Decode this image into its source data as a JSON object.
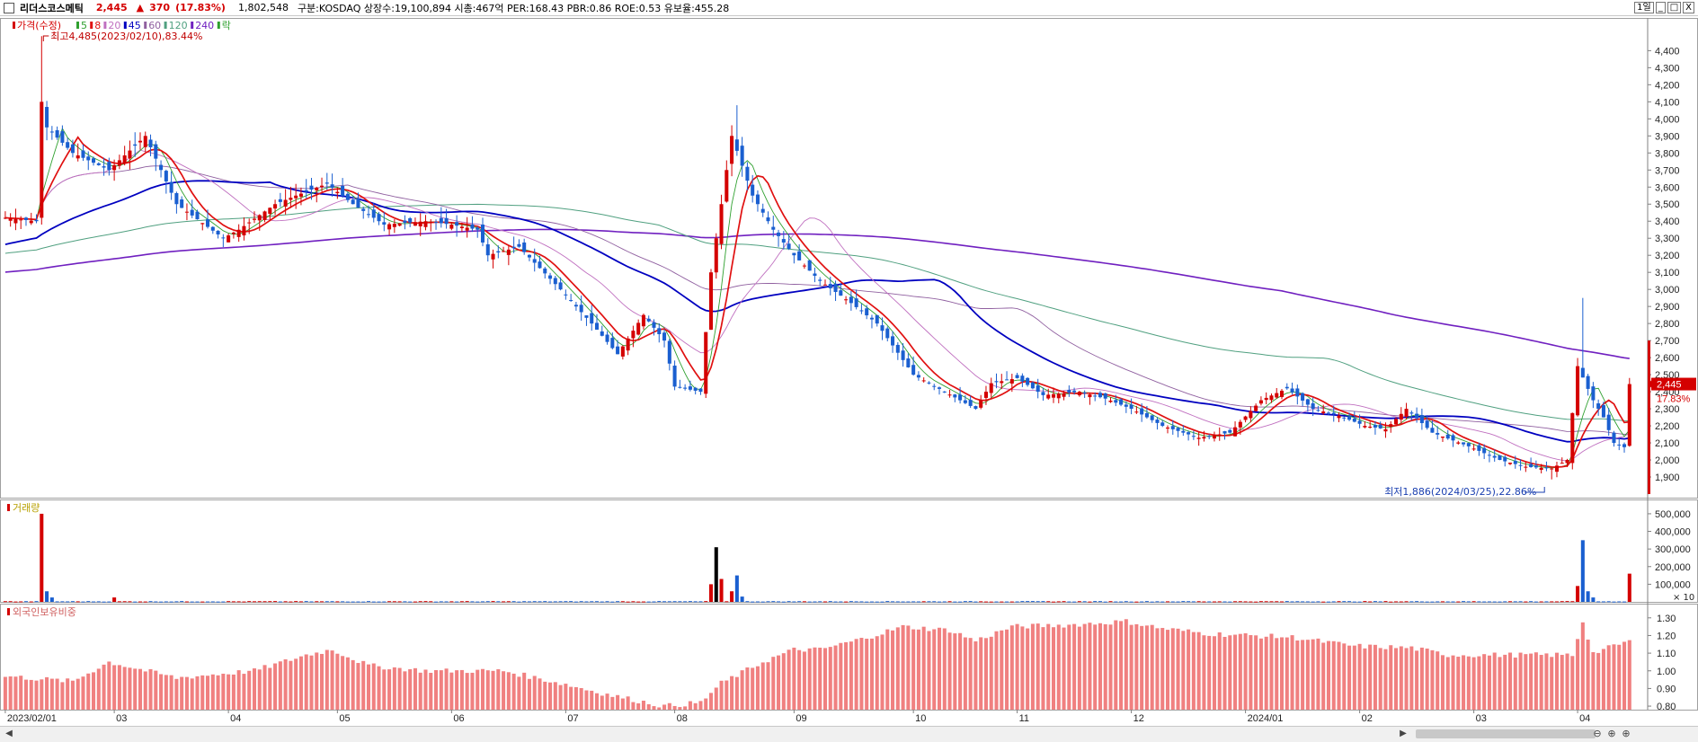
{
  "header": {
    "stock_name": "리더스코스메틱",
    "price": "2,445",
    "change_arrow": "▲",
    "change": "370",
    "change_pct": "(17.83%)",
    "volume": "1,802,548",
    "info": "구분:KOSDAQ 상장수:19,100,894 시총:467억 PER:168.43 PBR:0.86 ROE:0.53 유보율:455.28",
    "period_button": "1일",
    "win_buttons": [
      "_",
      "□",
      "X"
    ]
  },
  "colors": {
    "up": "#d40000",
    "down": "#1a5fd0",
    "ma5": "#2fa02f",
    "ma8": "#e01010",
    "ma20": "#c070c0",
    "ma45": "#0000c0",
    "ma60": "#9060a0",
    "ma120": "#50a080",
    "ma240": "#7020c0",
    "foreign": "#f08080"
  },
  "bottom": {
    "scroll_left": "◀",
    "scroll_right": "▶",
    "zoom_icons": [
      "⊖",
      "⊕",
      "⊕"
    ]
  },
  "chart_data": [
    {
      "type": "candlestick",
      "title": "",
      "legend": [
        "가격(수정)",
        "5",
        "8",
        "20",
        "45",
        "60",
        "120",
        "240",
        "락"
      ],
      "y_ticks": [
        "4,400",
        "4,300",
        "4,200",
        "4,100",
        "4,000",
        "3,900",
        "3,800",
        "3,700",
        "3,600",
        "3,500",
        "3,400",
        "3,300",
        "3,200",
        "3,100",
        "3,000",
        "2,900",
        "2,800",
        "2,700",
        "2,600",
        "2,500",
        "2,400",
        "2,300",
        "2,200",
        "2,100",
        "2,000",
        "1,900"
      ],
      "ylim": [
        1800,
        4560
      ],
      "annotations": {
        "high": "최고4,485(2023/02/10),83.44%",
        "low": "최저1,886(2024/03/25),22.86%",
        "last_price": "2,445",
        "last_pct": "17.83%"
      },
      "x_labels": [
        "2023/02/01",
        "03",
        "04",
        "05",
        "06",
        "07",
        "08",
        "09",
        "10",
        "11",
        "12",
        "2024/01",
        "02",
        "03",
        "04"
      ],
      "anchor_closes": [
        [
          "2023/02/01",
          3420
        ],
        [
          "2023/02/09",
          3400
        ],
        [
          "2023/02/10",
          4100
        ],
        [
          "2023/02/13",
          3950
        ],
        [
          "2023/02/20",
          3800
        ],
        [
          "2023/03/01",
          3700
        ],
        [
          "2023/03/10",
          3900
        ],
        [
          "2023/03/20",
          3500
        ],
        [
          "2023/03/31",
          3300
        ],
        [
          "2023/04/05",
          3350
        ],
        [
          "2023/04/14",
          3500
        ],
        [
          "2023/04/20",
          3550
        ],
        [
          "2023/04/28",
          3620
        ],
        [
          "2023/05/05",
          3500
        ],
        [
          "2023/05/15",
          3380
        ],
        [
          "2023/05/25",
          3400
        ],
        [
          "2023/06/01",
          3380
        ],
        [
          "2023/06/08",
          3350
        ],
        [
          "2023/06/12",
          3200
        ],
        [
          "2023/06/20",
          3250
        ],
        [
          "2023/06/30",
          3000
        ],
        [
          "2023/07/10",
          2800
        ],
        [
          "2023/07/17",
          2620
        ],
        [
          "2023/07/24",
          2850
        ],
        [
          "2023/07/28",
          2700
        ],
        [
          "2023/08/01",
          2430
        ],
        [
          "2023/08/08",
          2400
        ],
        [
          "2023/08/10",
          3100
        ],
        [
          "2023/08/16",
          3900
        ],
        [
          "2023/08/22",
          3550
        ],
        [
          "2023/08/28",
          3350
        ],
        [
          "2023/09/01",
          3200
        ],
        [
          "2023/09/08",
          3050
        ],
        [
          "2023/09/18",
          2920
        ],
        [
          "2023/09/25",
          2800
        ],
        [
          "2023/10/04",
          2500
        ],
        [
          "2023/10/12",
          2400
        ],
        [
          "2023/10/20",
          2300
        ],
        [
          "2023/10/25",
          2450
        ],
        [
          "2023/11/01",
          2480
        ],
        [
          "2023/11/08",
          2380
        ],
        [
          "2023/11/17",
          2400
        ],
        [
          "2023/11/24",
          2360
        ],
        [
          "2023/12/01",
          2300
        ],
        [
          "2023/12/11",
          2200
        ],
        [
          "2023/12/20",
          2130
        ],
        [
          "2023/12/28",
          2160
        ],
        [
          "2024/01/05",
          2350
        ],
        [
          "2024/01/12",
          2420
        ],
        [
          "2024/01/19",
          2300
        ],
        [
          "2024/01/26",
          2260
        ],
        [
          "2024/02/02",
          2200
        ],
        [
          "2024/02/08",
          2180
        ],
        [
          "2024/02/14",
          2300
        ],
        [
          "2024/02/21",
          2160
        ],
        [
          "2024/03/01",
          2080
        ],
        [
          "2024/03/11",
          2000
        ],
        [
          "2024/03/18",
          1960
        ],
        [
          "2024/03/25",
          1950
        ],
        [
          "2024/03/28",
          2000
        ],
        [
          "2024/04/01",
          2550
        ],
        [
          "2024/04/04",
          2350
        ],
        [
          "2024/04/08",
          2250
        ],
        [
          "2024/04/10",
          2100
        ],
        [
          "2024/04/12",
          2075
        ],
        [
          "2024/04/15",
          2445
        ]
      ]
    },
    {
      "type": "bar",
      "title": "거래량",
      "y_ticks": [
        "500,000",
        "400,000",
        "300,000",
        "200,000",
        "100,000"
      ],
      "unit_label": "× 10",
      "ylim": [
        0,
        520000
      ],
      "spikes": [
        [
          "2023/02/10",
          500000
        ],
        [
          "2023/02/13",
          60000
        ],
        [
          "2023/02/14",
          25000
        ],
        [
          "2023/03/02",
          25000
        ],
        [
          "2023/08/10",
          100000
        ],
        [
          "2023/08/11",
          310000
        ],
        [
          "2023/08/14",
          130000
        ],
        [
          "2023/08/16",
          60000
        ],
        [
          "2023/08/17",
          150000
        ],
        [
          "2023/08/18",
          30000
        ],
        [
          "2024/04/01",
          90000
        ],
        [
          "2024/04/02",
          350000
        ],
        [
          "2024/04/03",
          60000
        ],
        [
          "2024/04/04",
          25000
        ],
        [
          "2024/04/15",
          160000
        ]
      ],
      "base_value": 3000
    },
    {
      "type": "bar",
      "title": "외국인보유비중",
      "y_ticks": [
        "1.30",
        "1.20",
        "1.10",
        "1.00",
        "0.90",
        "0.80"
      ],
      "ylim": [
        0.78,
        1.36
      ],
      "anchors": [
        [
          "2023/02/01",
          0.97
        ],
        [
          "2023/02/20",
          0.94
        ],
        [
          "2023/03/01",
          1.05
        ],
        [
          "2023/03/20",
          0.96
        ],
        [
          "2023/04/10",
          1.0
        ],
        [
          "2023/04/24",
          1.09
        ],
        [
          "2023/05/01",
          1.12
        ],
        [
          "2023/05/10",
          1.03
        ],
        [
          "2023/05/25",
          1.0
        ],
        [
          "2023/06/15",
          1.0
        ],
        [
          "2023/06/30",
          0.93
        ],
        [
          "2023/07/14",
          0.86
        ],
        [
          "2023/07/28",
          0.8
        ],
        [
          "2023/08/08",
          0.82
        ],
        [
          "2023/08/14",
          0.93
        ],
        [
          "2023/08/24",
          1.05
        ],
        [
          "2023/09/01",
          1.12
        ],
        [
          "2023/09/08",
          1.12
        ],
        [
          "2023/09/20",
          1.18
        ],
        [
          "2023/10/02",
          1.25
        ],
        [
          "2023/10/13",
          1.23
        ],
        [
          "2023/10/20",
          1.17
        ],
        [
          "2023/10/31",
          1.25
        ],
        [
          "2023/11/15",
          1.26
        ],
        [
          "2023/11/30",
          1.28
        ],
        [
          "2023/12/11",
          1.24
        ],
        [
          "2023/12/22",
          1.21
        ],
        [
          "2024/01/15",
          1.19
        ],
        [
          "2024/01/31",
          1.14
        ],
        [
          "2024/02/15",
          1.13
        ],
        [
          "2024/02/26",
          1.09
        ],
        [
          "2024/03/29",
          1.09
        ],
        [
          "2024/04/02",
          1.28
        ],
        [
          "2024/04/04",
          1.1
        ],
        [
          "2024/04/15",
          1.17
        ]
      ]
    }
  ]
}
